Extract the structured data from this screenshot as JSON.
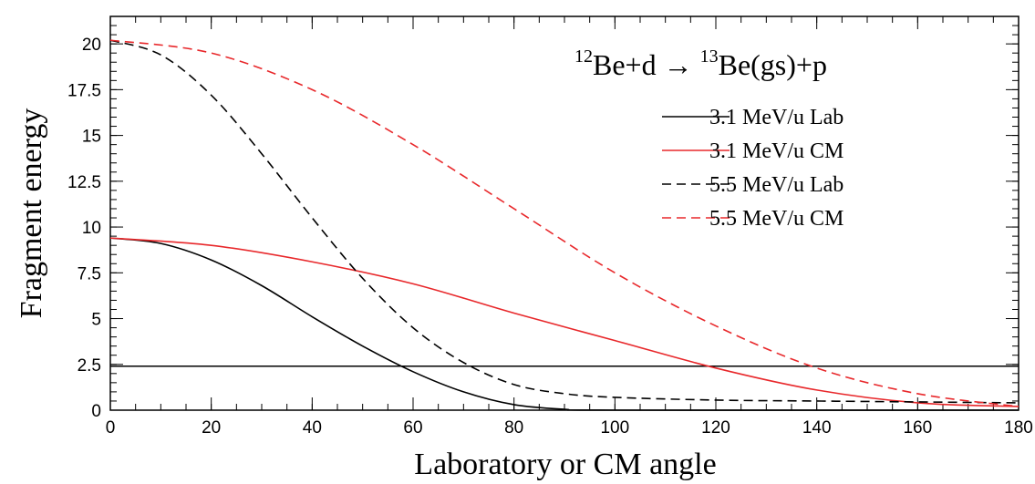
{
  "chart_data": {
    "type": "line",
    "title": "",
    "annotation": {
      "mass_a": "12",
      "mass_b": "13",
      "reaction_part1": "Be+d → ",
      "reaction_part2": "Be(gs)+p"
    },
    "xlabel": "Laboratory or CM angle",
    "ylabel": "Fragment energy",
    "xlim": [
      0,
      180
    ],
    "ylim": [
      0,
      21.5
    ],
    "xticks": [
      "0",
      "20",
      "40",
      "60",
      "80",
      "100",
      "120",
      "140",
      "160",
      "180"
    ],
    "yticks": [
      "0",
      "2.5",
      "5",
      "7.5",
      "10",
      "12.5",
      "15",
      "17.5",
      "20"
    ],
    "grid": false,
    "legend_position": "top-right",
    "reference_line": {
      "y": 2.4,
      "color": "#000000"
    },
    "series": [
      {
        "name": "3.1 MeV/u Lab",
        "color": "#000000",
        "dash": "solid",
        "x": [
          0,
          10,
          20,
          30,
          40,
          50,
          60,
          70,
          80,
          90,
          100,
          180
        ],
        "y": [
          9.4,
          9.1,
          8.2,
          6.8,
          5.1,
          3.5,
          2.1,
          1.0,
          0.3,
          0.05,
          0.0,
          0.0
        ]
      },
      {
        "name": "3.1 MeV/u CM",
        "color": "#e8282b",
        "dash": "solid",
        "x": [
          0,
          20,
          40,
          60,
          80,
          100,
          120,
          140,
          160,
          180
        ],
        "y": [
          9.4,
          9.0,
          8.1,
          6.9,
          5.3,
          3.8,
          2.3,
          1.1,
          0.4,
          0.2
        ]
      },
      {
        "name": "5.5 MeV/u Lab",
        "color": "#000000",
        "dash": "dashed",
        "x": [
          0,
          10,
          20,
          30,
          40,
          50,
          60,
          70,
          80,
          90,
          100,
          120,
          140,
          160,
          180
        ],
        "y": [
          20.2,
          19.4,
          17.2,
          14.0,
          10.5,
          7.2,
          4.5,
          2.6,
          1.4,
          0.9,
          0.7,
          0.55,
          0.5,
          0.45,
          0.4
        ]
      },
      {
        "name": "5.5 MeV/u CM",
        "color": "#e8282b",
        "dash": "dashed",
        "x": [
          0,
          20,
          40,
          60,
          80,
          100,
          120,
          140,
          160,
          180
        ],
        "y": [
          20.2,
          19.5,
          17.5,
          14.5,
          11.0,
          7.5,
          4.6,
          2.3,
          0.9,
          0.2
        ]
      }
    ]
  }
}
